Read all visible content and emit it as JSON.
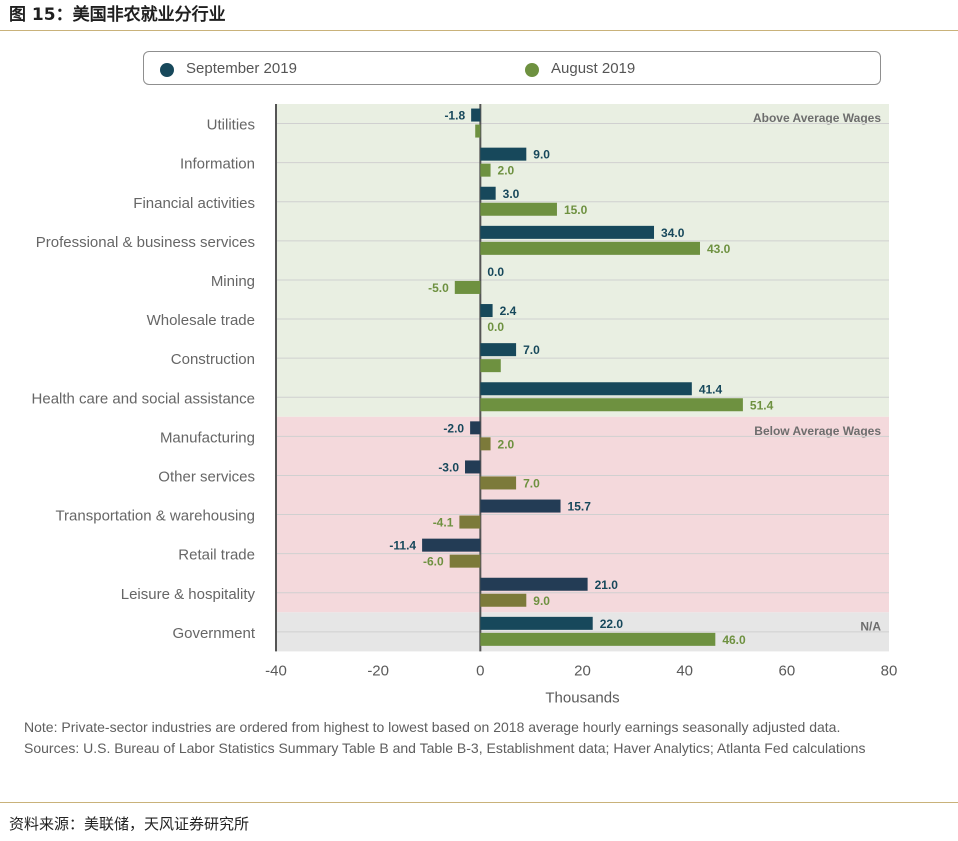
{
  "figure_title": "图 15：美国非农就业分行业",
  "colors": {
    "september": "#17485b",
    "september_below": "#233c55",
    "august": "#6e9140",
    "august_below": "#7c7a3a",
    "band_above": "#e9efe2",
    "band_below": "#f4d9dc",
    "band_na": "#e6e6e6",
    "axis_text": "#5a5a5a"
  },
  "note": "Note: Private-sector industries are ordered from highest to lowest based on 2018 average hourly earnings seasonally adjusted data.",
  "sources_note": "Sources: U.S. Bureau of Labor Statistics Summary Table B and Table B-3, Establishment data; Haver Analytics; Atlanta Fed calculations",
  "source": "资料来源：美联储，天风证券研究所",
  "chart_data": {
    "type": "bar",
    "orientation": "horizontal",
    "xlabel": "Thousands",
    "xlim": [
      -40,
      80
    ],
    "xticks": [
      "-40",
      "-20",
      "0",
      "20",
      "40",
      "60",
      "80"
    ],
    "xtick_values": [
      -40,
      -20,
      0,
      20,
      40,
      60,
      80
    ],
    "legend": [
      "September 2019",
      "August 2019"
    ],
    "categories": [
      "Utilities",
      "Information",
      "Financial activities",
      "Professional & business services",
      "Mining",
      "Wholesale trade",
      "Construction",
      "Health care and social assistance",
      "Manufacturing",
      "Other services",
      "Transportation & warehousing",
      "Retail trade",
      "Leisure & hospitality",
      "Government"
    ],
    "series": [
      {
        "name": "September 2019",
        "values": [
          -1.8,
          9.0,
          3.0,
          34.0,
          0.0,
          2.4,
          7.0,
          41.4,
          -2.0,
          -3.0,
          15.7,
          -11.4,
          21.0,
          22.0
        ],
        "labels": [
          "-1.8",
          "9.0",
          "3.0",
          "34.0",
          "0.0",
          "2.4",
          "7.0",
          "41.4",
          "-2.0",
          "-3.0",
          "15.7",
          "-11.4",
          "21.0",
          "22.0"
        ]
      },
      {
        "name": "August 2019",
        "values": [
          -1.0,
          2.0,
          15.0,
          43.0,
          -5.0,
          0.0,
          4.0,
          51.4,
          2.0,
          7.0,
          -4.1,
          -6.0,
          9.0,
          46.0
        ],
        "labels": [
          "",
          "2.0",
          "15.0",
          "43.0",
          "-5.0",
          "0.0",
          "",
          "51.4",
          "2.0",
          "7.0",
          "-4.1",
          "-6.0",
          "9.0",
          "46.0"
        ]
      }
    ],
    "groups": [
      {
        "label": "Above Average Wages",
        "start": 0,
        "end": 7,
        "color_key": "band_above"
      },
      {
        "label": "Below Average Wages",
        "start": 8,
        "end": 12,
        "color_key": "band_below"
      },
      {
        "label": "N/A",
        "start": 13,
        "end": 13,
        "color_key": "band_na"
      }
    ]
  }
}
